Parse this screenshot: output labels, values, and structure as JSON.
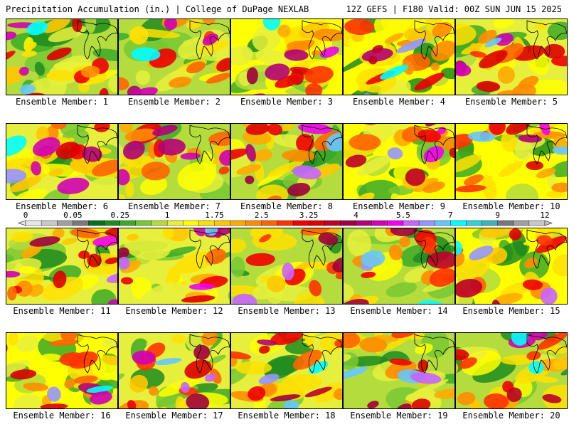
{
  "header": {
    "left_title": "Precipitation Accumulation (in.) | College of DuPage NEXLAB",
    "right_title": "12Z GEFS | F180 Valid: 00Z SUN JUN 15 2025"
  },
  "colorbar": {
    "tick_labels": [
      "0",
      "0.05",
      "0.25",
      "1",
      "1.75",
      "2.5",
      "3.25",
      "4",
      "5.5",
      "7",
      "9",
      "12"
    ],
    "colors": [
      "#e6e6e6",
      "#c8c8c8",
      "#a0a0a0",
      "#7a7a7a",
      "#0a6e1e",
      "#1e8c1e",
      "#3caa28",
      "#78c832",
      "#b4dc3c",
      "#e6f03c",
      "#ffff00",
      "#ffe100",
      "#ffc800",
      "#ffaa00",
      "#ff8c00",
      "#ff6400",
      "#ff3200",
      "#f00000",
      "#dc0000",
      "#be0028",
      "#a0003c",
      "#b40078",
      "#d200b4",
      "#f000f0",
      "#c864ff",
      "#9696ff",
      "#64c8ff",
      "#00ffff",
      "#32d2d2",
      "#3cb4b4",
      "#787878",
      "#a0a0a0",
      "#c8c8c8"
    ]
  },
  "members": [
    {
      "label": "Ensemble Member: 1"
    },
    {
      "label": "Ensemble Member: 2"
    },
    {
      "label": "Ensemble Member: 3"
    },
    {
      "label": "Ensemble Member: 4"
    },
    {
      "label": "Ensemble Member: 5"
    },
    {
      "label": "Ensemble Member: 6"
    },
    {
      "label": "Ensemble Member: 7"
    },
    {
      "label": "Ensemble Member: 8"
    },
    {
      "label": "Ensemble Member: 9"
    },
    {
      "label": "Ensemble Member: 10"
    },
    {
      "label": "Ensemble Member: 11"
    },
    {
      "label": "Ensemble Member: 12"
    },
    {
      "label": "Ensemble Member: 13"
    },
    {
      "label": "Ensemble Member: 14"
    },
    {
      "label": "Ensemble Member: 15"
    },
    {
      "label": "Ensemble Member: 16"
    },
    {
      "label": "Ensemble Member: 17"
    },
    {
      "label": "Ensemble Member: 18"
    },
    {
      "label": "Ensemble Member: 19"
    },
    {
      "label": "Ensemble Member: 20"
    }
  ]
}
